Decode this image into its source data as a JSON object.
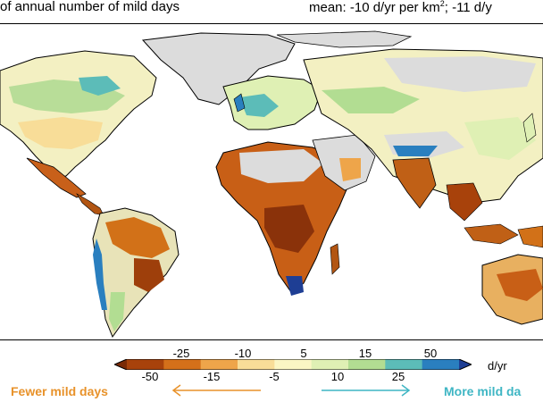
{
  "header": {
    "title_left": "of annual number of mild days",
    "title_right_prefix": "mean: -10 d/yr per km",
    "title_right_sup": "2",
    "title_right_suffix": "; -11 d/y"
  },
  "colorbar": {
    "top_labels": [
      "-25",
      "-10",
      "5",
      "15",
      "50"
    ],
    "bottom_labels": [
      "-50",
      "-15",
      "-5",
      "10",
      "25"
    ],
    "units": "d/yr",
    "colors": [
      "#7a2a06",
      "#a8420b",
      "#d4701a",
      "#eea54a",
      "#f8dd98",
      "#fbf6c4",
      "#dff0b4",
      "#b2dd92",
      "#5cbcb8",
      "#2a7fbf",
      "#1e3e94"
    ]
  },
  "legend": {
    "fewer_label": "Fewer mild days",
    "more_label": "More mild da",
    "fewer_color": "#e8922a",
    "more_color": "#3fb6c4"
  },
  "map_colors": {
    "ocean": "#ffffff",
    "no_data": "#dcdcdc",
    "coast": "#000000"
  }
}
